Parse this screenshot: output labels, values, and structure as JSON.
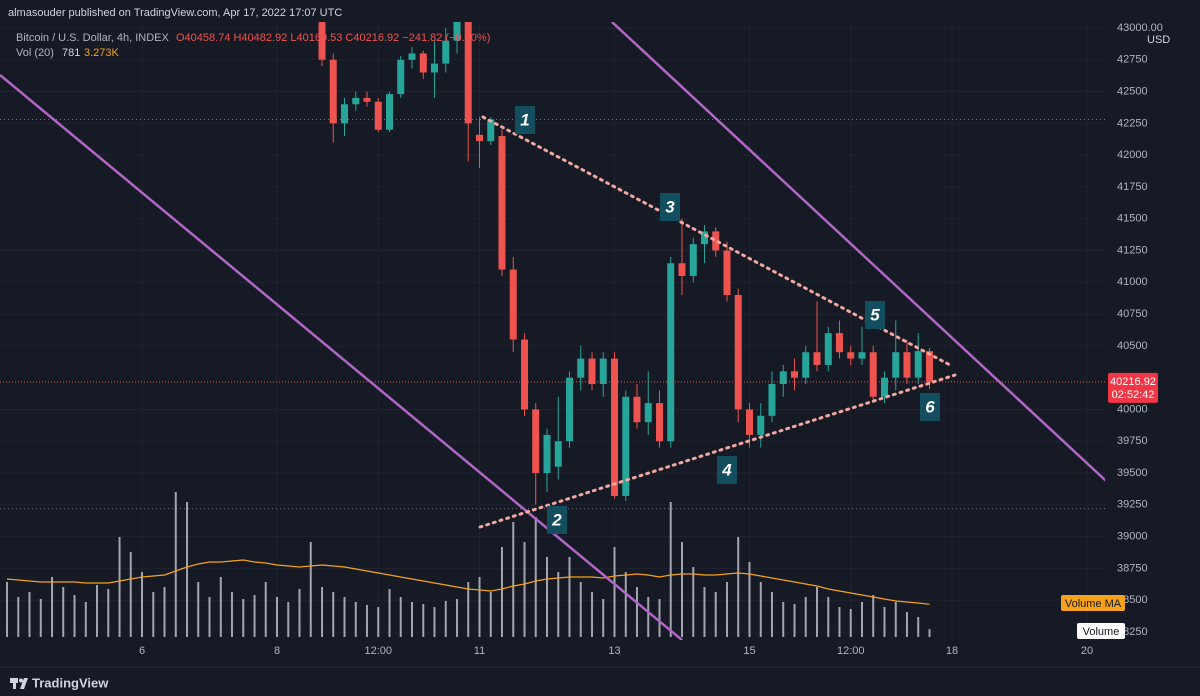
{
  "chart_data": {
    "type": "candlestick",
    "publisher": "almasouder published on TradingView.com, Apr 17, 2022 17:07 UTC",
    "title": "Bitcoin / U.S. Dollar, 4h, INDEX",
    "ohlc_label": "O40458.74 H40482.92 L40160.53 C40216.92 −241.82 (−0.60%)",
    "volume_legend": {
      "name": "Vol (20)",
      "value": "781",
      "ma": "3.273K"
    },
    "currency": "USD",
    "last_price_label": "40216.92",
    "countdown": "02:52:42",
    "volume_ma_name": "Volume MA",
    "volume_name": "Volume",
    "brand": "TradingView",
    "annotations": [
      "1",
      "2",
      "3",
      "4",
      "5",
      "6"
    ],
    "colors": {
      "up": "#26a69a",
      "down": "#ef5350",
      "volume": "#d1d4dc",
      "volume_ma": "#f7a21b",
      "channel": "#b266c8",
      "trend": "#f2a7a0"
    },
    "xlim": [
      3.896,
      20.267
    ],
    "xticks": [
      6,
      8,
      {
        "value": 9.5,
        "label": "12:00"
      },
      11,
      13,
      15,
      {
        "value": 16.5,
        "label": "12:00"
      },
      18,
      20
    ],
    "ylim": [
      38187,
      43047
    ],
    "yticks": [
      {
        "value": 43000,
        "label": "43000.00"
      },
      42750,
      42500,
      42250,
      42000,
      41750,
      41500,
      41250,
      41000,
      40750,
      40500,
      40000,
      39750,
      39500,
      39250,
      39000,
      38750,
      38500,
      38250
    ],
    "grid": true,
    "hlines": [
      42280,
      39220
    ],
    "x": [
      4,
      4.167,
      4.333,
      4.5,
      4.667,
      4.833,
      5,
      5.167,
      5.333,
      5.5,
      5.667,
      5.833,
      6,
      6.167,
      6.333,
      6.5,
      6.667,
      6.833,
      7,
      7.167,
      7.333,
      7.5,
      7.667,
      7.833,
      8,
      8.167,
      8.333,
      8.5,
      8.667,
      8.833,
      9,
      9.167,
      9.333,
      9.5,
      9.667,
      9.833,
      10,
      10.167,
      10.333,
      10.5,
      10.667,
      10.833,
      11,
      11.167,
      11.333,
      11.5,
      11.667,
      11.833,
      12,
      12.167,
      12.333,
      12.5,
      12.667,
      12.833,
      13,
      13.167,
      13.333,
      13.5,
      13.667,
      13.833,
      14,
      14.167,
      14.333,
      14.5,
      14.667,
      14.833,
      15,
      15.167,
      15.333,
      15.5,
      15.667,
      15.833,
      16,
      16.167,
      16.333,
      16.5,
      16.667,
      16.833,
      17,
      17.167,
      17.333,
      17.5,
      17.667
    ],
    "open": [
      null,
      null,
      null,
      null,
      null,
      null,
      null,
      null,
      null,
      null,
      null,
      null,
      null,
      null,
      null,
      null,
      null,
      null,
      null,
      null,
      null,
      null,
      null,
      null,
      null,
      null,
      null,
      null,
      43050,
      42750,
      42250,
      42400,
      42450,
      42420,
      42200,
      42480,
      42750,
      42800,
      42650,
      42720,
      42900,
      43050,
      42160,
      42110,
      42150,
      41100,
      40550,
      40000,
      39500,
      39550,
      39750,
      40250,
      40400,
      40200,
      40400,
      39320,
      40100,
      39900,
      40050,
      39750,
      41150,
      41050,
      41300,
      41400,
      41250,
      40900,
      40000,
      39800,
      39950,
      40200,
      40300,
      40250,
      40450,
      40350,
      40600,
      40450,
      40400,
      40450,
      40100,
      40250,
      40450,
      40250,
      40458.74
    ],
    "high": [
      null,
      null,
      null,
      null,
      null,
      null,
      null,
      null,
      null,
      null,
      null,
      null,
      null,
      null,
      null,
      null,
      null,
      null,
      null,
      null,
      null,
      null,
      null,
      null,
      null,
      null,
      null,
      null,
      43150,
      42800,
      42450,
      42500,
      42500,
      42450,
      42500,
      42780,
      42850,
      42820,
      42900,
      43000,
      43100,
      43100,
      42300,
      42300,
      42200,
      41200,
      40600,
      40050,
      39850,
      40100,
      40300,
      40500,
      40450,
      40450,
      40450,
      40150,
      40200,
      40300,
      40150,
      41200,
      41500,
      41350,
      41450,
      41430,
      41320,
      40950,
      40050,
      40050,
      40300,
      40350,
      40400,
      40500,
      40850,
      40650,
      40700,
      40500,
      40650,
      40500,
      40300,
      40700,
      40550,
      40600,
      40482.92
    ],
    "low": [
      null,
      null,
      null,
      null,
      null,
      null,
      null,
      null,
      null,
      null,
      null,
      null,
      null,
      null,
      null,
      null,
      null,
      null,
      null,
      null,
      null,
      null,
      null,
      null,
      null,
      null,
      null,
      null,
      42700,
      42100,
      42150,
      42350,
      42380,
      42180,
      42180,
      42450,
      42680,
      42600,
      42450,
      42650,
      42800,
      41950,
      41900,
      42080,
      41050,
      40450,
      39950,
      39250,
      39350,
      39450,
      39700,
      40150,
      40150,
      40100,
      39300,
      39280,
      39850,
      39800,
      39700,
      39700,
      40900,
      41000,
      41150,
      41200,
      40850,
      39900,
      39700,
      39700,
      39900,
      40100,
      40150,
      40200,
      40300,
      40300,
      40400,
      40350,
      40350,
      40050,
      40050,
      40150,
      40200,
      40200,
      40160.53
    ],
    "close": [
      null,
      null,
      null,
      null,
      null,
      null,
      null,
      null,
      null,
      null,
      null,
      null,
      null,
      null,
      null,
      null,
      null,
      null,
      null,
      null,
      null,
      null,
      null,
      null,
      null,
      null,
      null,
      null,
      42750,
      42250,
      42400,
      42450,
      42420,
      42200,
      42480,
      42750,
      42800,
      42650,
      42720,
      42900,
      43050,
      42250,
      42110,
      42280,
      41100,
      40550,
      40000,
      39500,
      39800,
      39750,
      40250,
      40400,
      40200,
      40400,
      39320,
      40100,
      39900,
      40050,
      39750,
      41150,
      41050,
      41300,
      41400,
      41250,
      40900,
      40000,
      39800,
      39950,
      40200,
      40300,
      40250,
      40450,
      40350,
      40600,
      40450,
      40400,
      40450,
      40100,
      40250,
      40450,
      40250,
      40458.74,
      40216.92
    ],
    "volume": [
      5500,
      4000,
      4500,
      3800,
      6000,
      5000,
      4200,
      3500,
      5200,
      4800,
      10000,
      8500,
      6500,
      4500,
      5000,
      14500,
      13500,
      5500,
      4000,
      6000,
      4500,
      3800,
      4200,
      5500,
      4000,
      3500,
      4800,
      9500,
      5000,
      4500,
      4000,
      3500,
      3200,
      3000,
      4800,
      4000,
      3500,
      3300,
      3000,
      3600,
      3800,
      5500,
      6000,
      4500,
      9000,
      11500,
      9500,
      12000,
      8000,
      6500,
      8000,
      5500,
      4500,
      3800,
      9000,
      6500,
      5000,
      4000,
      3800,
      13500,
      9500,
      7000,
      5000,
      4500,
      5500,
      10000,
      7500,
      5500,
      4500,
      3500,
      3300,
      4000,
      5000,
      4000,
      3000,
      2800,
      3500,
      4200,
      3000,
      3500,
      2500,
      2000,
      781
    ],
    "volume_ma": [
      5800,
      5700,
      5600,
      5500,
      5500,
      5500,
      5500,
      5400,
      5400,
      5400,
      5600,
      5800,
      6000,
      6100,
      6200,
      6600,
      7000,
      7300,
      7500,
      7500,
      7600,
      7700,
      7500,
      7400,
      7200,
      7100,
      7000,
      7100,
      7200,
      7100,
      7000,
      6800,
      6600,
      6400,
      6200,
      6000,
      5800,
      5600,
      5400,
      5200,
      5000,
      4800,
      4700,
      4600,
      4800,
      5100,
      5300,
      5600,
      5800,
      5900,
      6000,
      6000,
      6000,
      5900,
      6100,
      6200,
      6300,
      6200,
      6000,
      6200,
      6300,
      6300,
      6200,
      6200,
      6300,
      6400,
      6300,
      6100,
      5900,
      5700,
      5500,
      5300,
      5100,
      4800,
      4600,
      4400,
      4200,
      4000,
      3800,
      3600,
      3500,
      3400,
      3273
    ]
  }
}
